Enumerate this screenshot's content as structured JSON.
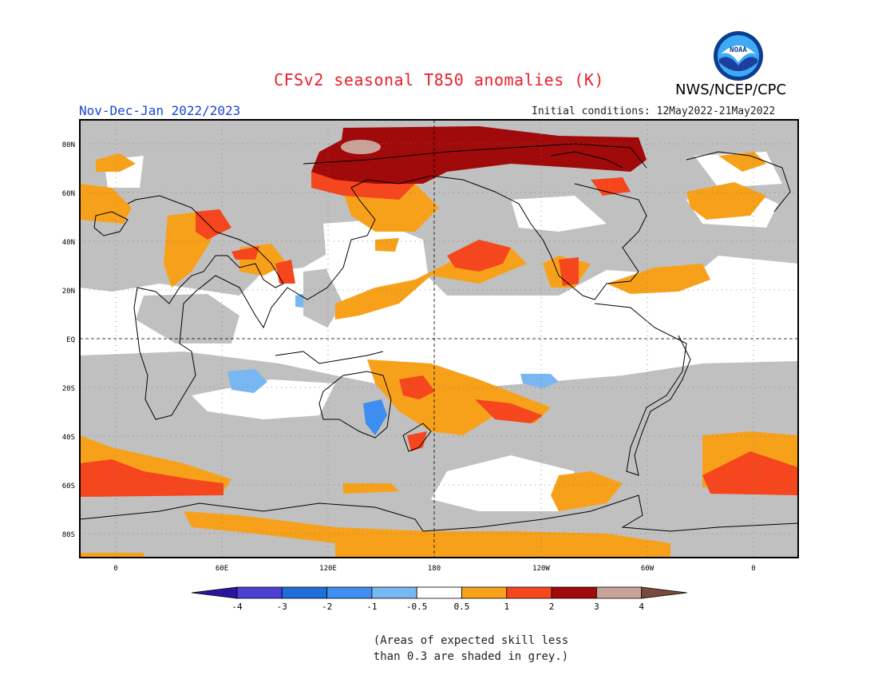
{
  "title": "CFSv2 seasonal T850 anomalies (K)",
  "agency": "NWS/NCEP/CPC",
  "logo": {
    "name": "noaa-logo",
    "text": "NOAA",
    "colors": {
      "outer": "#0b3d91",
      "mid": "#3fa9f5",
      "inner": "#ffffff",
      "wave": "#1c3f9e"
    }
  },
  "period": "Nov-Dec-Jan 2022/2023",
  "initial_conditions": "Initial conditions: 12May2022-21May2022",
  "map": {
    "lat_labels": [
      "80N",
      "60N",
      "40N",
      "20N",
      "EQ",
      "20S",
      "40S",
      "60S",
      "80S"
    ],
    "lon_labels": [
      "0",
      "60E",
      "120E",
      "180",
      "120W",
      "60W",
      "0"
    ],
    "background_color": "#ffffff",
    "grey_mask_color": "#c0c0c0",
    "coastline_color": "#000000"
  },
  "colorbar": {
    "tick_labels": [
      "-4",
      "-3",
      "-2",
      "-1",
      "-0.5",
      "0.5",
      "1",
      "2",
      "3",
      "4"
    ],
    "colors": [
      "#2f12a0",
      "#4a3fd1",
      "#1f6fd8",
      "#3d8ef0",
      "#79b7f2",
      "#ffffff",
      "#f7a11a",
      "#f5461e",
      "#a00a0a",
      "#c9a39a",
      "#7a4a3a"
    ]
  },
  "footnote": {
    "line1": "(Areas of expected skill less",
    "line2": "than 0.3 are shaded in grey.)"
  }
}
